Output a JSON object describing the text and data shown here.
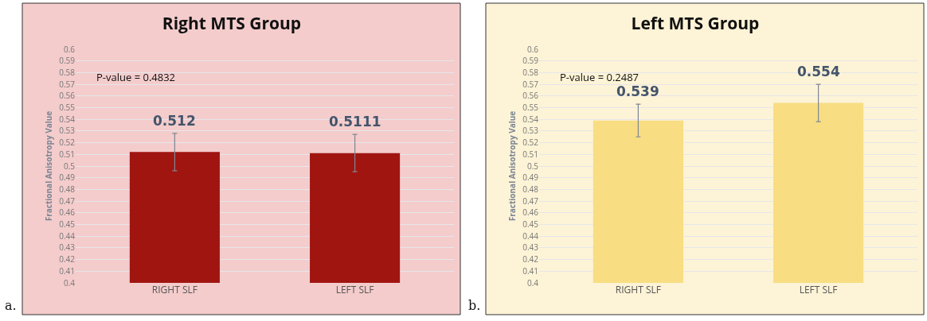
{
  "chart_data": [
    {
      "type": "bar",
      "title": "Right MTS Group",
      "ylabel": "Fractional Anisotropy Value",
      "categories": [
        "RIGHT SLF",
        "LEFT SLF"
      ],
      "values": [
        0.512,
        0.5111
      ],
      "errors": [
        0.016,
        0.016
      ],
      "color": "#a01510",
      "data_labels": true,
      "ylim": [
        0.4,
        0.6
      ],
      "yticks": [
        0.4,
        0.41,
        0.42,
        0.43,
        0.44,
        0.45,
        0.46,
        0.47,
        0.48,
        0.49,
        0.5,
        0.51,
        0.52,
        0.53,
        0.54,
        0.55,
        0.56,
        0.57,
        0.58,
        0.59,
        0.6
      ],
      "grid": "y",
      "annotations": [
        "P-value = 0.4832",
        "a."
      ]
    },
    {
      "type": "bar",
      "title": "Left MTS Group",
      "ylabel": "Fractional Anisotropy Value",
      "categories": [
        "RIGHT SLF",
        "LEFT SLF"
      ],
      "values": [
        0.539,
        0.554
      ],
      "errors": [
        0.014,
        0.016
      ],
      "color": "#f8dd82",
      "data_labels": true,
      "ylim": [
        0.4,
        0.6
      ],
      "yticks": [
        0.4,
        0.41,
        0.42,
        0.43,
        0.44,
        0.45,
        0.46,
        0.47,
        0.48,
        0.49,
        0.5,
        0.51,
        0.52,
        0.53,
        0.54,
        0.55,
        0.56,
        0.57,
        0.58,
        0.59,
        0.6
      ],
      "grid": "y",
      "annotations": [
        "P-value = 0.2487",
        "b."
      ]
    }
  ]
}
